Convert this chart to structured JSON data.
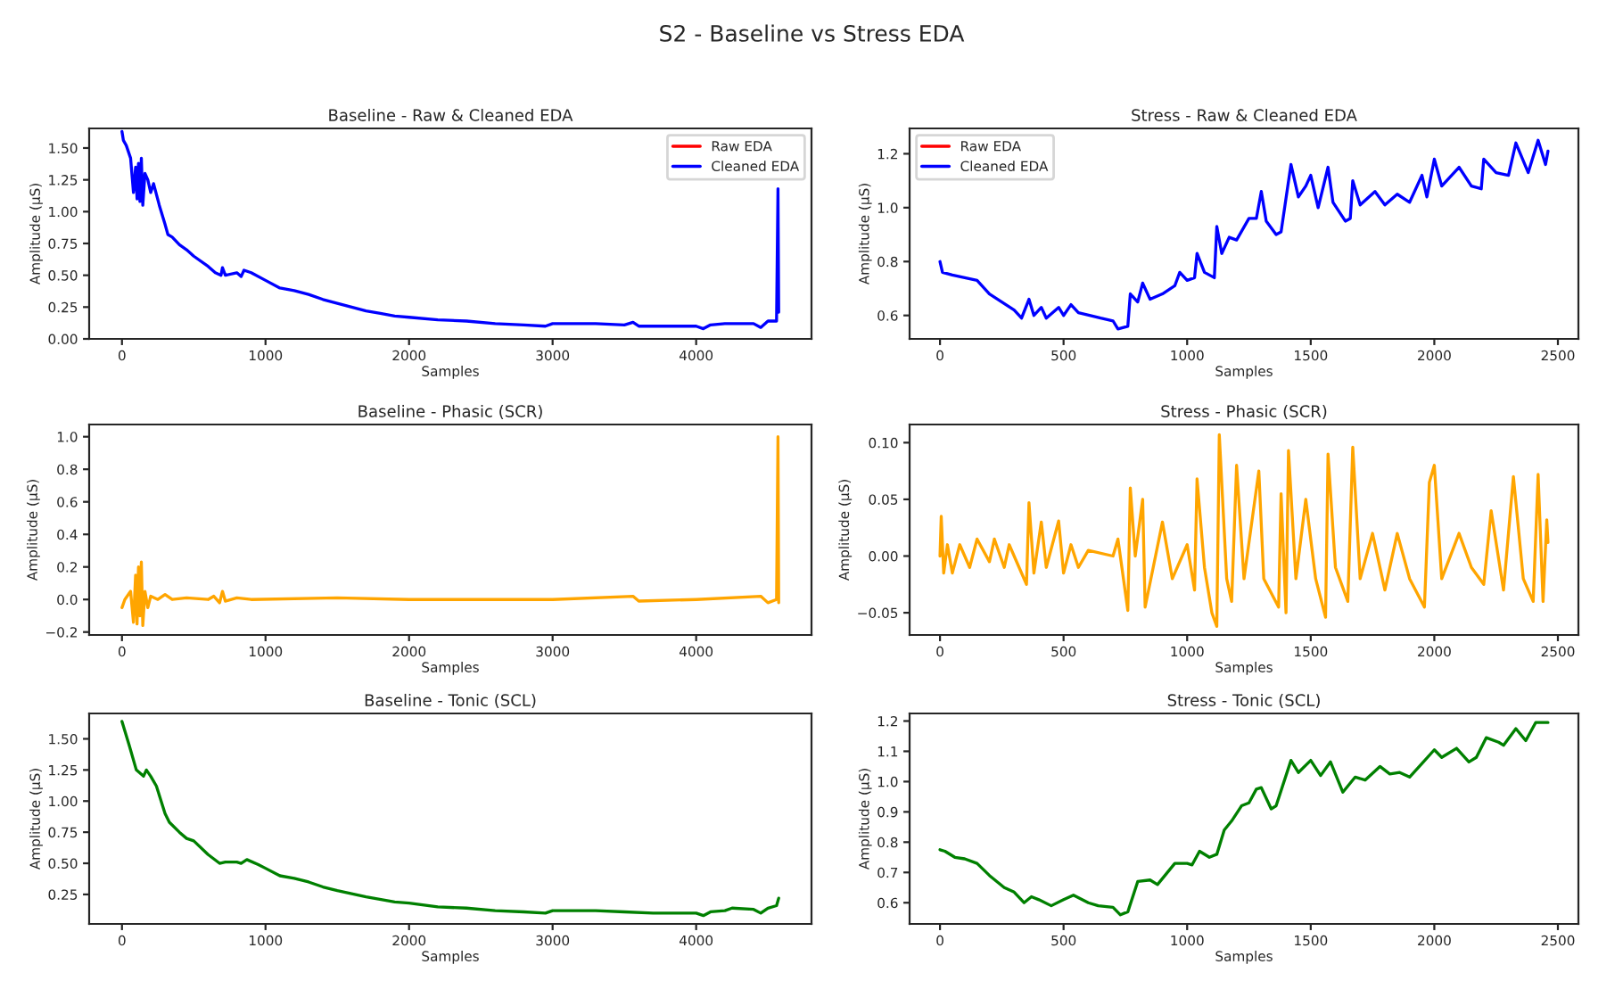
{
  "chart_data": [
    {
      "type": "line",
      "title": "Baseline - Raw & Cleaned EDA",
      "xlabel": "Samples",
      "ylabel": "Amplitude (µS)",
      "annotations": [
        "S2 - Baseline vs Stress EDA"
      ],
      "xlim": [
        -228.5,
        4803.5
      ],
      "ylim": [
        0.0,
        1.654
      ],
      "xticks": [
        0,
        1000,
        2000,
        3000,
        4000
      ],
      "yticks": [
        {
          "value": 0,
          "label": "0.00"
        },
        {
          "value": 0.25,
          "label": "0.25"
        },
        {
          "value": 0.5,
          "label": "0.50"
        },
        {
          "value": 0.75,
          "label": "0.75"
        },
        {
          "value": 1.0,
          "label": "1.00"
        },
        {
          "value": 1.25,
          "label": "1.25"
        },
        {
          "value": 1.5,
          "label": "1.50"
        }
      ],
      "legend": "top right",
      "grid": false,
      "series": [
        {
          "name": "Raw EDA",
          "color": "#ff0000"
        },
        {
          "name": "Cleaned EDA",
          "color": "#0000ff",
          "x": [
            0,
            10,
            30,
            60,
            80,
            95,
            105,
            115,
            125,
            135,
            145,
            160,
            180,
            200,
            220,
            260,
            300,
            320,
            350,
            400,
            450,
            500,
            600,
            650,
            690,
            700,
            720,
            800,
            830,
            850,
            900,
            1000,
            1100,
            1200,
            1300,
            1400,
            1500,
            1600,
            1700,
            1800,
            1900,
            2000,
            2200,
            2400,
            2600,
            2800,
            2950,
            3000,
            3300,
            3500,
            3560,
            3600,
            3800,
            4000,
            4050,
            4100,
            4200,
            4400,
            4450,
            4500,
            4560,
            4570,
            4575
          ],
          "values": [
            1.63,
            1.56,
            1.52,
            1.42,
            1.15,
            1.35,
            1.1,
            1.38,
            1.08,
            1.42,
            1.05,
            1.3,
            1.25,
            1.15,
            1.22,
            1.05,
            0.9,
            0.82,
            0.8,
            0.74,
            0.7,
            0.65,
            0.57,
            0.52,
            0.5,
            0.56,
            0.5,
            0.52,
            0.49,
            0.54,
            0.52,
            0.46,
            0.4,
            0.38,
            0.35,
            0.31,
            0.28,
            0.25,
            0.22,
            0.2,
            0.18,
            0.17,
            0.15,
            0.14,
            0.12,
            0.11,
            0.1,
            0.12,
            0.12,
            0.11,
            0.13,
            0.1,
            0.1,
            0.1,
            0.08,
            0.11,
            0.12,
            0.12,
            0.09,
            0.14,
            0.14,
            1.18,
            0.21
          ]
        }
      ]
    },
    {
      "type": "line",
      "title": "Stress - Raw & Cleaned EDA",
      "xlabel": "Samples",
      "ylabel": "Amplitude (µS)",
      "xlim": [
        -123,
        2583
      ],
      "ylim": [
        0.513,
        1.294
      ],
      "xticks": [
        0,
        500,
        1000,
        1500,
        2000,
        2500
      ],
      "yticks": [
        {
          "value": 0.6,
          "label": "0.6"
        },
        {
          "value": 0.8,
          "label": "0.8"
        },
        {
          "value": 1.0,
          "label": "1.0"
        },
        {
          "value": 1.2,
          "label": "1.2"
        }
      ],
      "legend": "top left",
      "grid": false,
      "series": [
        {
          "name": "Raw EDA",
          "color": "#ff0000"
        },
        {
          "name": "Cleaned EDA",
          "color": "#0000ff",
          "x": [
            0,
            10,
            50,
            100,
            150,
            200,
            250,
            300,
            330,
            360,
            380,
            410,
            430,
            480,
            500,
            530,
            560,
            650,
            700,
            720,
            760,
            770,
            800,
            820,
            850,
            900,
            950,
            970,
            1000,
            1030,
            1040,
            1070,
            1110,
            1120,
            1140,
            1170,
            1200,
            1250,
            1280,
            1300,
            1320,
            1360,
            1380,
            1420,
            1450,
            1480,
            1500,
            1530,
            1570,
            1590,
            1640,
            1660,
            1670,
            1700,
            1760,
            1800,
            1850,
            1900,
            1950,
            1970,
            2000,
            2030,
            2100,
            2150,
            2190,
            2200,
            2250,
            2300,
            2330,
            2380,
            2420,
            2450,
            2460
          ],
          "values": [
            0.8,
            0.76,
            0.75,
            0.74,
            0.73,
            0.68,
            0.65,
            0.62,
            0.59,
            0.66,
            0.6,
            0.63,
            0.59,
            0.63,
            0.6,
            0.64,
            0.61,
            0.59,
            0.58,
            0.55,
            0.56,
            0.68,
            0.65,
            0.72,
            0.66,
            0.68,
            0.71,
            0.76,
            0.73,
            0.74,
            0.83,
            0.76,
            0.74,
            0.93,
            0.83,
            0.89,
            0.88,
            0.96,
            0.96,
            1.06,
            0.95,
            0.9,
            0.91,
            1.16,
            1.04,
            1.08,
            1.12,
            1.0,
            1.15,
            1.02,
            0.95,
            0.96,
            1.1,
            1.01,
            1.06,
            1.01,
            1.05,
            1.02,
            1.12,
            1.04,
            1.18,
            1.08,
            1.15,
            1.08,
            1.07,
            1.18,
            1.13,
            1.12,
            1.24,
            1.13,
            1.25,
            1.16,
            1.21
          ]
        }
      ]
    },
    {
      "type": "line",
      "title": "Baseline - Phasic (SCR)",
      "xlabel": "Samples",
      "ylabel": "Amplitude (µS)",
      "xlim": [
        -228.5,
        4803.5
      ],
      "ylim": [
        -0.218,
        1.075
      ],
      "xticks": [
        0,
        1000,
        2000,
        3000,
        4000
      ],
      "yticks": [
        {
          "value": -0.2,
          "label": "−0.2"
        },
        {
          "value": 0,
          "label": "0.0"
        },
        {
          "value": 0.2,
          "label": "0.2"
        },
        {
          "value": 0.4,
          "label": "0.4"
        },
        {
          "value": 0.6,
          "label": "0.6"
        },
        {
          "value": 0.8,
          "label": "0.8"
        },
        {
          "value": 1.0,
          "label": "1.0"
        }
      ],
      "grid": false,
      "series": [
        {
          "color": "#ffa500",
          "x": [
            0,
            20,
            60,
            80,
            95,
            105,
            115,
            125,
            135,
            145,
            160,
            180,
            200,
            250,
            300,
            350,
            450,
            600,
            640,
            680,
            700,
            720,
            800,
            900,
            1500,
            2000,
            3000,
            3560,
            3600,
            4000,
            4450,
            4500,
            4560,
            4570,
            4575
          ],
          "values": [
            -0.05,
            0.0,
            0.05,
            -0.14,
            0.15,
            -0.15,
            0.2,
            -0.1,
            0.23,
            -0.16,
            0.05,
            -0.05,
            0.02,
            0.0,
            0.03,
            0.0,
            0.01,
            0.0,
            0.02,
            -0.02,
            0.05,
            -0.01,
            0.01,
            0.0,
            0.01,
            0.0,
            0.0,
            0.02,
            -0.01,
            0.0,
            0.02,
            -0.02,
            0.0,
            1.0,
            -0.02
          ]
        }
      ]
    },
    {
      "type": "line",
      "title": "Stress - Phasic (SCR)",
      "xlabel": "Samples",
      "ylabel": "Amplitude (µS)",
      "xlim": [
        -123,
        2583
      ],
      "ylim": [
        -0.0696,
        0.116
      ],
      "xticks": [
        0,
        500,
        1000,
        1500,
        2000,
        2500
      ],
      "yticks": [
        {
          "value": -0.05,
          "label": "−0.05"
        },
        {
          "value": 0,
          "label": "0.00"
        },
        {
          "value": 0.05,
          "label": "0.05"
        },
        {
          "value": 0.1,
          "label": "0.10"
        }
      ],
      "grid": false,
      "series": [
        {
          "color": "#ffa500",
          "x": [
            0,
            5,
            15,
            30,
            50,
            80,
            120,
            150,
            200,
            220,
            260,
            280,
            320,
            350,
            360,
            380,
            410,
            430,
            480,
            500,
            530,
            560,
            600,
            700,
            720,
            760,
            770,
            790,
            820,
            830,
            900,
            940,
            1000,
            1030,
            1040,
            1070,
            1100,
            1120,
            1130,
            1160,
            1180,
            1200,
            1230,
            1290,
            1310,
            1370,
            1380,
            1400,
            1410,
            1440,
            1480,
            1520,
            1560,
            1570,
            1600,
            1650,
            1670,
            1700,
            1750,
            1800,
            1850,
            1900,
            1960,
            1980,
            2000,
            2030,
            2100,
            2150,
            2200,
            2230,
            2280,
            2320,
            2360,
            2400,
            2420,
            2440,
            2455,
            2460
          ],
          "values": [
            0.0,
            0.035,
            -0.015,
            0.01,
            -0.015,
            0.01,
            -0.01,
            0.015,
            -0.005,
            0.015,
            -0.01,
            0.01,
            -0.01,
            -0.025,
            0.047,
            -0.015,
            0.03,
            -0.01,
            0.031,
            -0.015,
            0.01,
            -0.01,
            0.005,
            0.0,
            0.015,
            -0.048,
            0.06,
            0.0,
            0.05,
            -0.045,
            0.03,
            -0.02,
            0.01,
            -0.03,
            0.068,
            -0.01,
            -0.05,
            -0.062,
            0.107,
            -0.02,
            -0.04,
            0.08,
            -0.02,
            0.075,
            -0.02,
            -0.045,
            0.055,
            -0.05,
            0.093,
            -0.02,
            0.05,
            -0.02,
            -0.054,
            0.09,
            -0.01,
            -0.04,
            0.096,
            -0.02,
            0.02,
            -0.03,
            0.02,
            -0.02,
            -0.045,
            0.065,
            0.08,
            -0.02,
            0.02,
            -0.01,
            -0.025,
            0.04,
            -0.03,
            0.07,
            -0.02,
            -0.04,
            0.072,
            -0.04,
            0.032,
            0.012
          ]
        }
      ]
    },
    {
      "type": "line",
      "title": "Baseline - Tonic (SCL)",
      "xlabel": "Samples",
      "ylabel": "Amplitude (µS)",
      "xlim": [
        -228.5,
        4803.5
      ],
      "ylim": [
        0.013,
        1.704
      ],
      "xticks": [
        0,
        1000,
        2000,
        3000,
        4000
      ],
      "yticks": [
        {
          "value": 0.25,
          "label": "0.25"
        },
        {
          "value": 0.5,
          "label": "0.50"
        },
        {
          "value": 0.75,
          "label": "0.75"
        },
        {
          "value": 1.0,
          "label": "1.00"
        },
        {
          "value": 1.25,
          "label": "1.25"
        },
        {
          "value": 1.5,
          "label": "1.50"
        }
      ],
      "grid": false,
      "series": [
        {
          "color": "#008000",
          "x": [
            0,
            50,
            100,
            150,
            170,
            200,
            240,
            300,
            330,
            400,
            450,
            500,
            600,
            680,
            720,
            800,
            830,
            870,
            950,
            1000,
            1100,
            1200,
            1300,
            1400,
            1500,
            1700,
            1900,
            2000,
            2200,
            2400,
            2600,
            2800,
            2950,
            3000,
            3300,
            3500,
            3700,
            4000,
            4050,
            4100,
            4200,
            4250,
            4400,
            4450,
            4500,
            4560,
            4575
          ],
          "values": [
            1.64,
            1.45,
            1.25,
            1.2,
            1.25,
            1.2,
            1.12,
            0.9,
            0.83,
            0.75,
            0.7,
            0.68,
            0.57,
            0.5,
            0.51,
            0.51,
            0.5,
            0.53,
            0.49,
            0.46,
            0.4,
            0.38,
            0.35,
            0.31,
            0.28,
            0.23,
            0.19,
            0.18,
            0.15,
            0.14,
            0.12,
            0.11,
            0.1,
            0.12,
            0.12,
            0.11,
            0.1,
            0.1,
            0.08,
            0.11,
            0.12,
            0.14,
            0.13,
            0.1,
            0.14,
            0.16,
            0.22
          ]
        }
      ]
    },
    {
      "type": "line",
      "title": "Stress - Tonic (SCL)",
      "xlabel": "Samples",
      "ylabel": "Amplitude (µS)",
      "xlim": [
        -123,
        2583
      ],
      "ylim": [
        0.53,
        1.225
      ],
      "xticks": [
        0,
        500,
        1000,
        1500,
        2000,
        2500
      ],
      "yticks": [
        {
          "value": 0.6,
          "label": "0.6"
        },
        {
          "value": 0.7,
          "label": "0.7"
        },
        {
          "value": 0.8,
          "label": "0.8"
        },
        {
          "value": 0.9,
          "label": "0.9"
        },
        {
          "value": 1.0,
          "label": "1.0"
        },
        {
          "value": 1.1,
          "label": "1.1"
        },
        {
          "value": 1.2,
          "label": "1.2"
        }
      ],
      "grid": false,
      "series": [
        {
          "color": "#008000",
          "x": [
            0,
            20,
            60,
            100,
            150,
            200,
            260,
            300,
            340,
            370,
            400,
            450,
            500,
            540,
            600,
            640,
            700,
            730,
            760,
            800,
            850,
            880,
            950,
            1000,
            1020,
            1050,
            1090,
            1120,
            1150,
            1180,
            1220,
            1250,
            1280,
            1300,
            1340,
            1360,
            1420,
            1450,
            1500,
            1540,
            1580,
            1630,
            1680,
            1720,
            1780,
            1820,
            1860,
            1900,
            1950,
            2000,
            2030,
            2090,
            2140,
            2170,
            2210,
            2260,
            2280,
            2330,
            2370,
            2410,
            2460
          ],
          "values": [
            0.775,
            0.77,
            0.75,
            0.745,
            0.73,
            0.69,
            0.65,
            0.635,
            0.6,
            0.62,
            0.61,
            0.59,
            0.61,
            0.625,
            0.6,
            0.59,
            0.585,
            0.56,
            0.57,
            0.67,
            0.675,
            0.66,
            0.73,
            0.73,
            0.725,
            0.77,
            0.75,
            0.76,
            0.84,
            0.87,
            0.92,
            0.93,
            0.975,
            0.98,
            0.91,
            0.92,
            1.07,
            1.03,
            1.07,
            1.02,
            1.065,
            0.965,
            1.015,
            1.005,
            1.05,
            1.025,
            1.03,
            1.015,
            1.06,
            1.105,
            1.08,
            1.11,
            1.065,
            1.08,
            1.145,
            1.13,
            1.12,
            1.175,
            1.135,
            1.195,
            1.195
          ]
        }
      ]
    }
  ]
}
